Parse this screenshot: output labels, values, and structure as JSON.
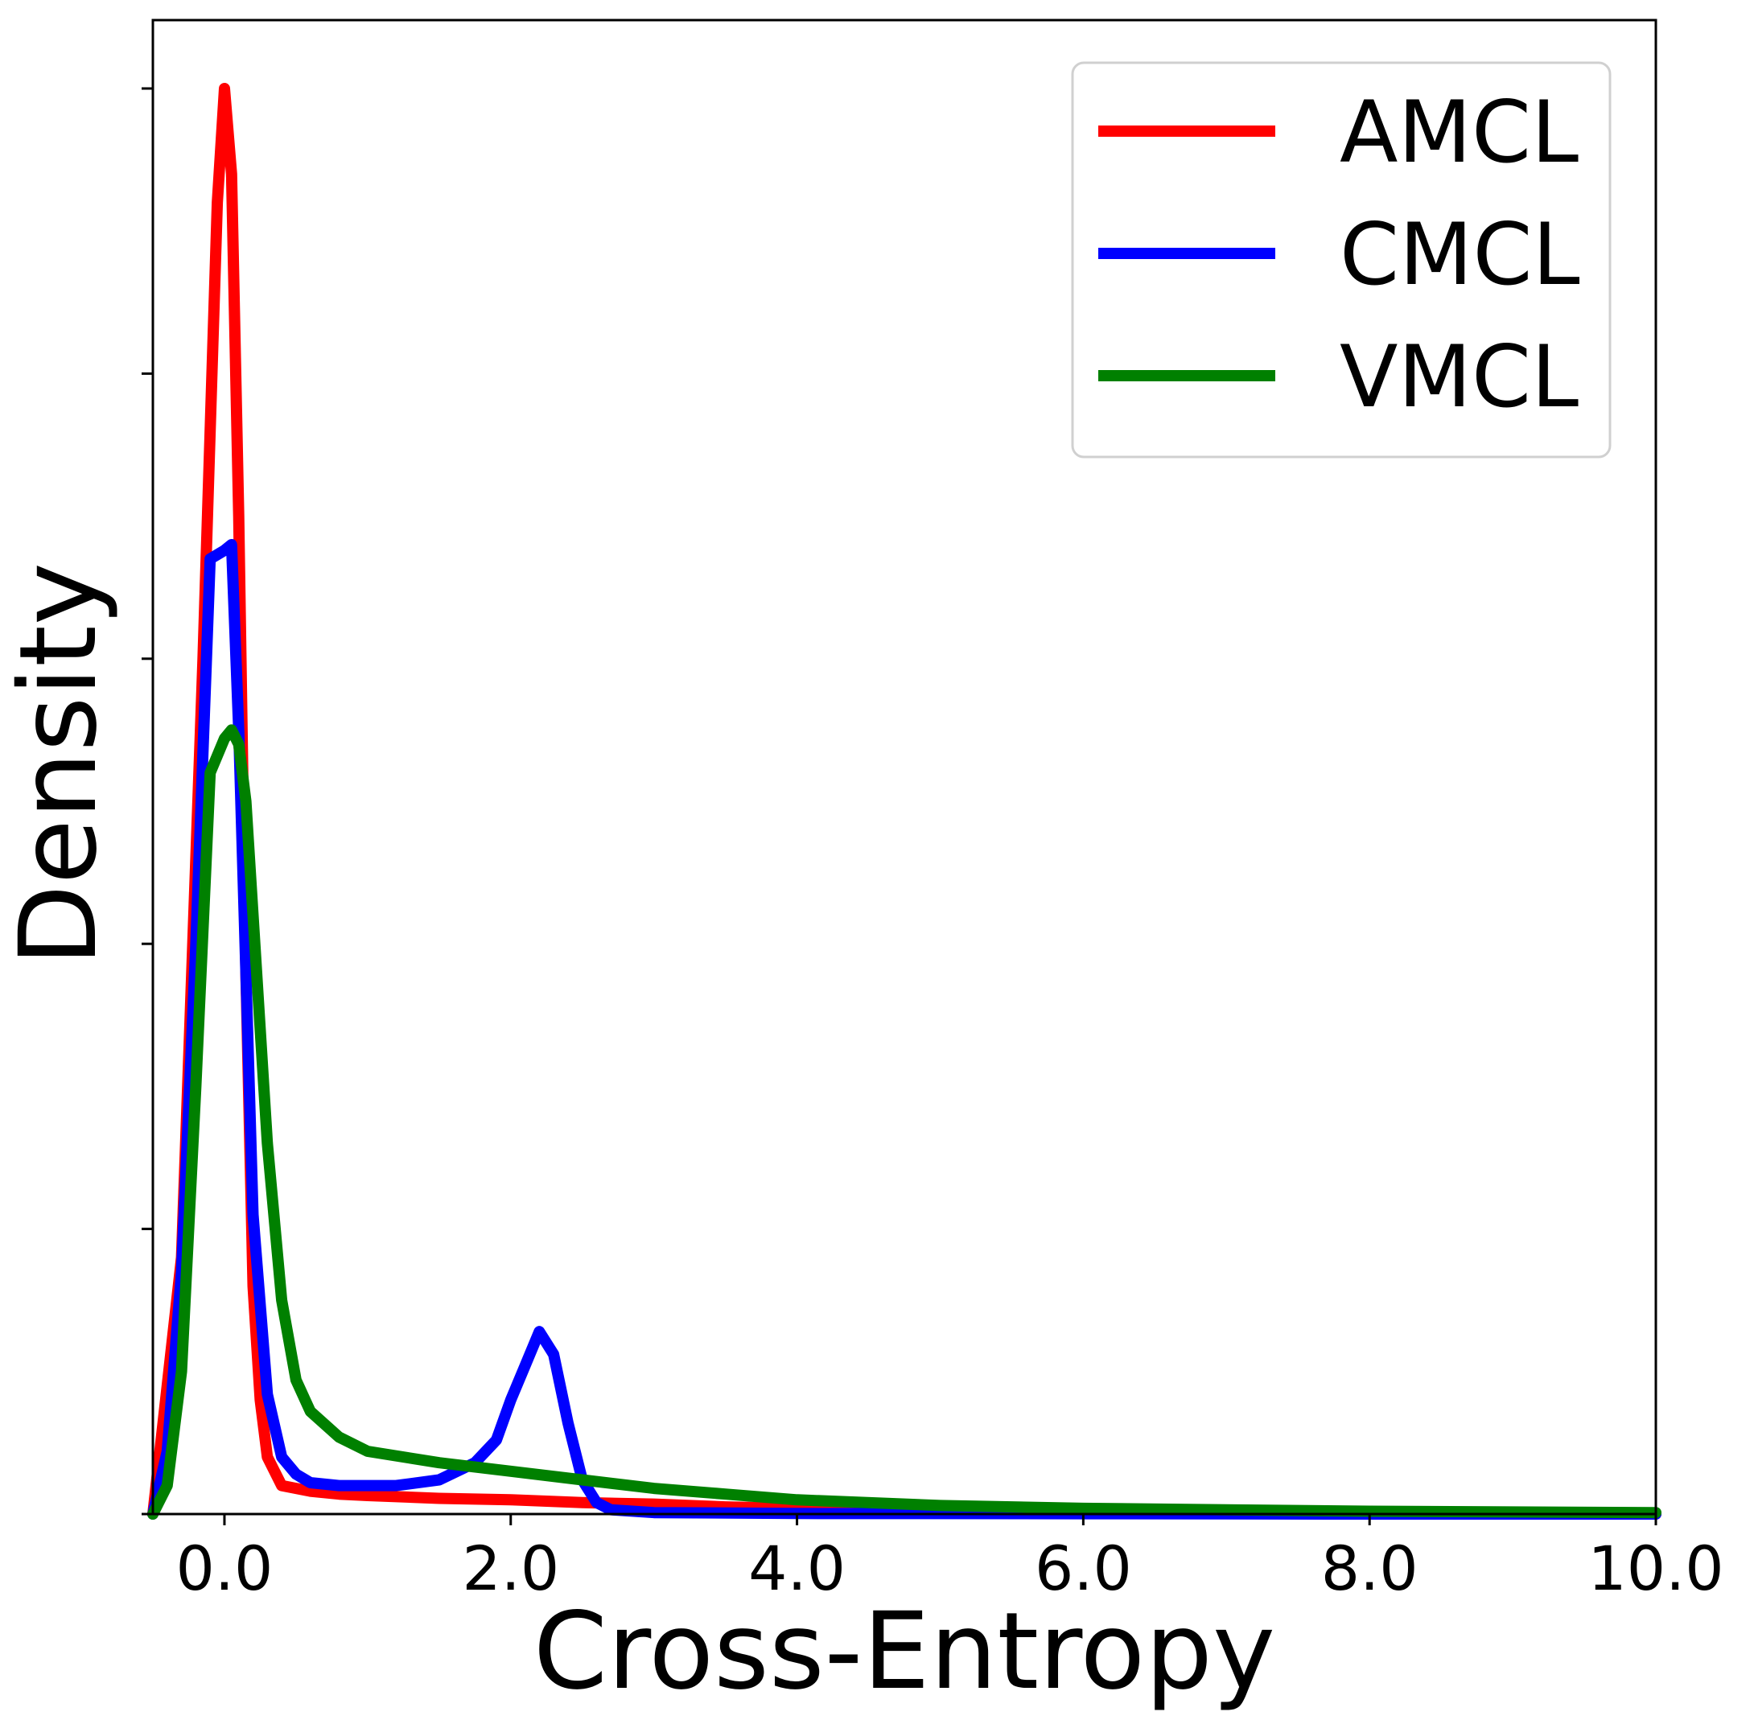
{
  "chart_data": {
    "type": "line",
    "title": "",
    "xlabel": "Cross-Entropy",
    "ylabel": "Density",
    "xlim": [
      -0.5,
      10.0
    ],
    "ylim": [
      0,
      5.0
    ],
    "x_ticks": [
      0.0,
      2.0,
      4.0,
      6.0,
      8.0,
      10.0
    ],
    "x_tick_labels": [
      "0.0",
      "2.0",
      "4.0",
      "6.0",
      "8.0",
      "10.0"
    ],
    "y_ticks": [
      0,
      1,
      2,
      3,
      4,
      5
    ],
    "y_tick_labels": [
      "",
      "",
      "",
      "",
      "",
      ""
    ],
    "grid": false,
    "legend_position": "top-right",
    "series": [
      {
        "name": "AMCL",
        "color": "#ff0000",
        "x": [
          -0.5,
          -0.3,
          -0.15,
          -0.05,
          0.0,
          0.05,
          0.1,
          0.15,
          0.2,
          0.25,
          0.3,
          0.4,
          0.6,
          0.8,
          1.0,
          1.5,
          2.0,
          2.5,
          3.0,
          3.5,
          4.0,
          5.0,
          6.0,
          8.0,
          10.0
        ],
        "y": [
          0.0,
          0.9,
          3.0,
          4.6,
          5.0,
          4.7,
          3.5,
          1.9,
          0.8,
          0.4,
          0.2,
          0.1,
          0.08,
          0.07,
          0.065,
          0.055,
          0.05,
          0.04,
          0.035,
          0.025,
          0.02,
          0.01,
          0.005,
          0.003,
          0.0
        ]
      },
      {
        "name": "CMCL",
        "color": "#0000ff",
        "x": [
          -0.5,
          -0.4,
          -0.3,
          -0.2,
          -0.1,
          0.0,
          0.05,
          0.1,
          0.15,
          0.2,
          0.3,
          0.4,
          0.5,
          0.6,
          0.8,
          1.0,
          1.2,
          1.5,
          1.75,
          1.9,
          2.0,
          2.1,
          2.2,
          2.3,
          2.4,
          2.5,
          2.6,
          2.7,
          3.0,
          4.0,
          6.0,
          8.0,
          10.0
        ],
        "y": [
          0.0,
          0.22,
          0.85,
          2.0,
          3.35,
          3.38,
          3.4,
          2.75,
          1.9,
          1.05,
          0.42,
          0.2,
          0.14,
          0.11,
          0.1,
          0.1,
          0.1,
          0.12,
          0.18,
          0.26,
          0.4,
          0.52,
          0.64,
          0.56,
          0.32,
          0.12,
          0.04,
          0.015,
          0.005,
          0.002,
          0.001,
          0.0,
          0.0
        ]
      },
      {
        "name": "VMCL",
        "color": "#008000",
        "x": [
          -0.5,
          -0.4,
          -0.3,
          -0.2,
          -0.1,
          0.0,
          0.05,
          0.1,
          0.15,
          0.2,
          0.3,
          0.4,
          0.5,
          0.6,
          0.8,
          1.0,
          1.5,
          2.0,
          2.5,
          3.0,
          3.5,
          4.0,
          5.0,
          6.0,
          8.0,
          10.0
        ],
        "y": [
          0.0,
          0.1,
          0.5,
          1.5,
          2.6,
          2.72,
          2.75,
          2.7,
          2.5,
          2.1,
          1.3,
          0.75,
          0.47,
          0.36,
          0.27,
          0.22,
          0.18,
          0.15,
          0.12,
          0.09,
          0.07,
          0.05,
          0.03,
          0.02,
          0.01,
          0.005
        ]
      }
    ]
  }
}
